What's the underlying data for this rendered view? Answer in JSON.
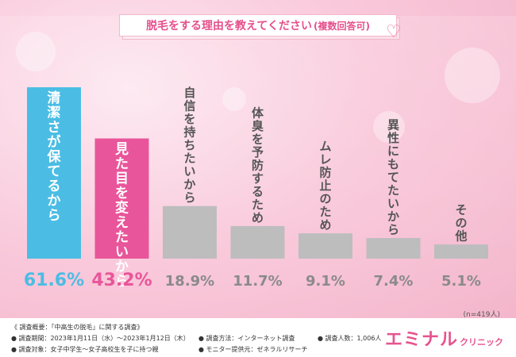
{
  "title": "脱毛をする理由を教えてください",
  "title_sub": "(複数回答可)",
  "n_note": "(n=419人)",
  "colors": {
    "first": "#4bbde4",
    "second": "#e9559a",
    "other": "#bdbdbd",
    "value_first": "#4bbde4",
    "value_second": "#e9559a",
    "value_other": "#8a8a8a"
  },
  "chart_data": {
    "type": "bar",
    "categories": [
      "清潔さが保てるから",
      "見た目を変えたいから",
      "自信を持ちたいから",
      "体臭を予防するため",
      "ムレ防止のため",
      "異性にもてたいから",
      "その他"
    ],
    "values": [
      61.6,
      43.2,
      18.9,
      11.7,
      9.1,
      7.4,
      5.1
    ],
    "value_labels": [
      "61.6%",
      "43.2%",
      "18.9%",
      "11.7%",
      "9.1%",
      "7.4%",
      "5.1%"
    ],
    "ylim": [
      0,
      61.6
    ],
    "grid": false,
    "legend": "none"
  },
  "footer": {
    "line1": "《 調査概要：「中高生の脱毛」に関する調査》",
    "line2": "● 調査期間：2023年1月11日（水）～2023年1月12日（木）",
    "line3": "● 調査対象：女子中学生～女子高校生を子に持つ親",
    "method": "● 調査方法：インターネット調査",
    "count": "● 調査人数：1,006人",
    "monitor": "● モニター提供元：ゼネラルリサーチ"
  },
  "brand": {
    "main": "エミナル",
    "sub": "クリニック"
  }
}
